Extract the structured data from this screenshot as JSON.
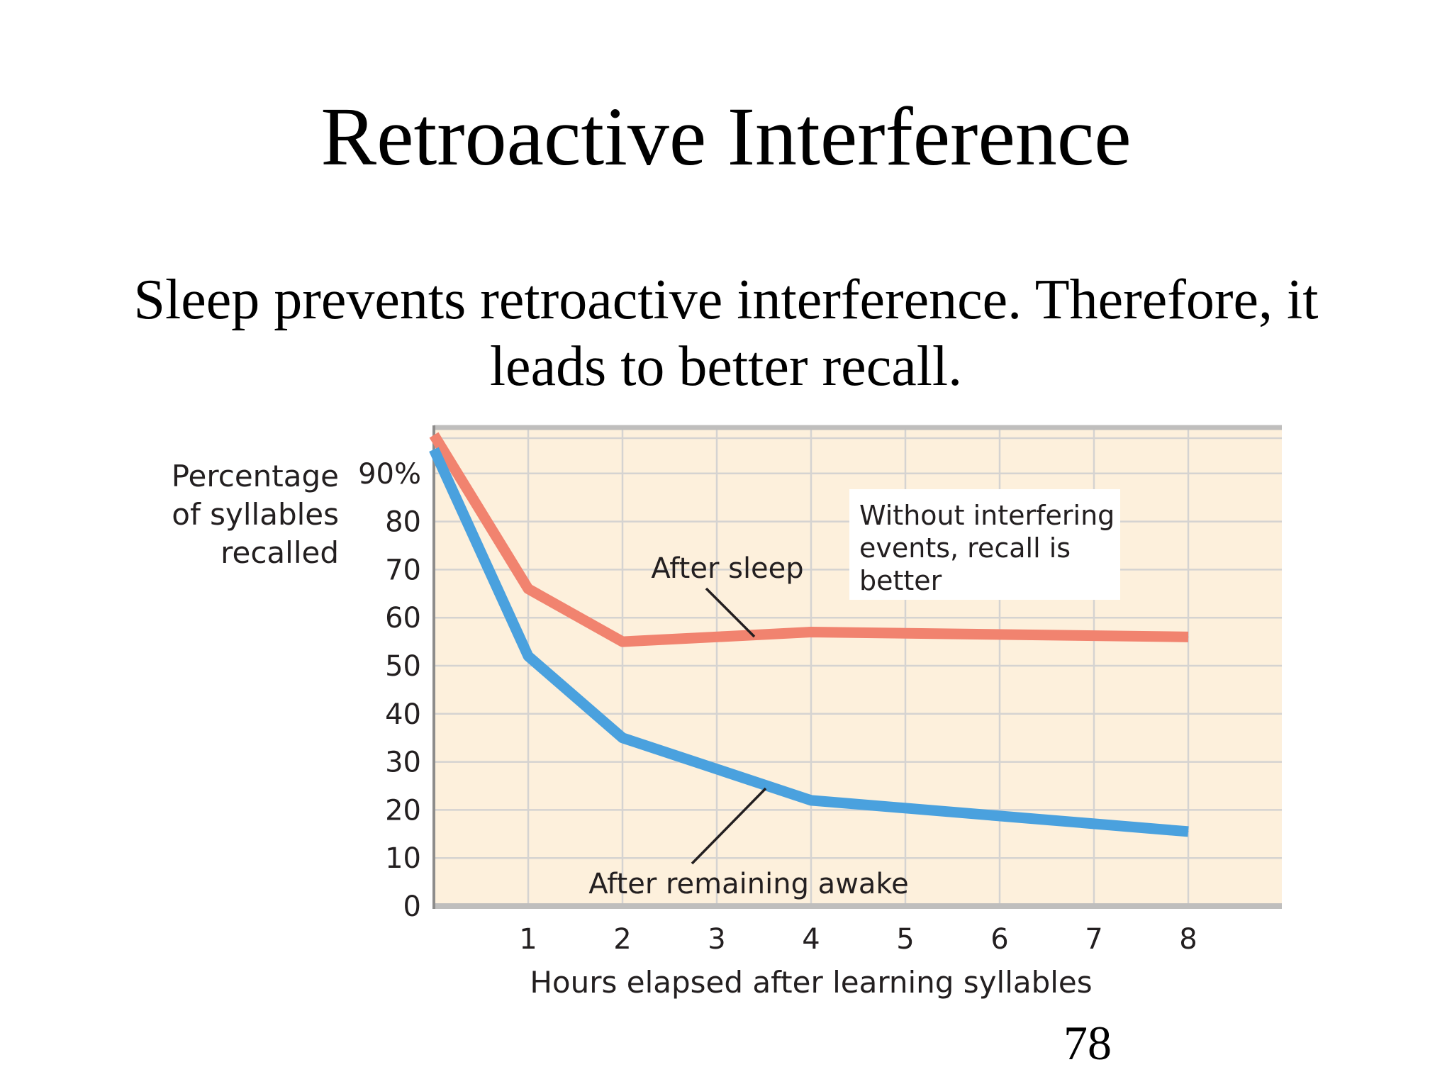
{
  "slide": {
    "title": "Retroactive Interference",
    "body_lines": [
      "Sleep prevents retroactive interference. Therefore, it",
      "leads to better recall."
    ],
    "page_number": "78"
  },
  "chart_data": {
    "type": "line",
    "xlabel": "Hours elapsed after learning syllables",
    "ylabel_lines": [
      "Percentage",
      "of syllables",
      "recalled"
    ],
    "x_ticks": [
      "1",
      "2",
      "3",
      "4",
      "5",
      "6",
      "7",
      "8"
    ],
    "y_ticks": [
      "0",
      "10",
      "20",
      "30",
      "40",
      "50",
      "60",
      "70",
      "80",
      "90%"
    ],
    "xlim": [
      0,
      9
    ],
    "ylim": [
      0,
      100
    ],
    "grid": true,
    "series": [
      {
        "name": "After sleep",
        "color": "#f1836f",
        "x": [
          0,
          1,
          2,
          4,
          8
        ],
        "values": [
          98,
          66,
          55,
          57,
          56
        ]
      },
      {
        "name": "After remaining awake",
        "color": "#4aa1de",
        "x": [
          0,
          1,
          2,
          4,
          8
        ],
        "values": [
          95,
          52,
          35,
          22,
          15.5
        ]
      }
    ],
    "annotations": {
      "note_lines": [
        "Without interfering",
        "events, recall is",
        "better"
      ]
    },
    "colors": {
      "background": "#fdf0dc",
      "grid": "#d5d3d1",
      "axis": "#bfbebd"
    }
  }
}
